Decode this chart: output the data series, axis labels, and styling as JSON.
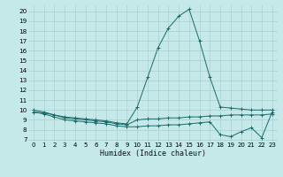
{
  "xlabel": "Humidex (Indice chaleur)",
  "ylabel": "",
  "background_color": "#c5e8e8",
  "grid_color": "#aacfcf",
  "line_color": "#1a6b6b",
  "x_ticks": [
    0,
    1,
    2,
    3,
    4,
    5,
    6,
    7,
    8,
    9,
    10,
    11,
    12,
    13,
    14,
    15,
    16,
    17,
    18,
    19,
    20,
    21,
    22,
    23
  ],
  "y_ticks": [
    7,
    8,
    9,
    10,
    11,
    12,
    13,
    14,
    15,
    16,
    17,
    18,
    19,
    20
  ],
  "ylim": [
    6.8,
    20.6
  ],
  "xlim": [
    -0.5,
    23.5
  ],
  "series": [
    {
      "x": [
        0,
        1,
        2,
        3,
        4,
        5,
        6,
        7,
        8,
        9,
        10,
        11,
        12,
        13,
        14,
        15,
        16,
        17,
        18,
        19,
        20,
        21,
        22,
        23
      ],
      "y": [
        10,
        9.8,
        9.5,
        9.3,
        9.2,
        9.1,
        9.0,
        8.9,
        8.7,
        8.6,
        10.3,
        13.3,
        16.3,
        18.3,
        19.5,
        20.2,
        17.0,
        13.3,
        10.3,
        10.2,
        10.1,
        10.0,
        10.0,
        10.0
      ]
    },
    {
      "x": [
        0,
        1,
        2,
        3,
        4,
        5,
        6,
        7,
        8,
        9,
        10,
        11,
        12,
        13,
        14,
        15,
        16,
        17,
        18,
        19,
        20,
        21,
        22,
        23
      ],
      "y": [
        9.8,
        9.6,
        9.3,
        9.0,
        8.9,
        8.8,
        8.7,
        8.6,
        8.4,
        8.3,
        8.3,
        8.4,
        8.4,
        8.5,
        8.5,
        8.6,
        8.7,
        8.8,
        7.5,
        7.3,
        7.8,
        8.2,
        7.2,
        9.8
      ]
    },
    {
      "x": [
        0,
        1,
        2,
        3,
        4,
        5,
        6,
        7,
        8,
        9,
        10,
        11,
        12,
        13,
        14,
        15,
        16,
        17,
        18,
        19,
        20,
        21,
        22,
        23
      ],
      "y": [
        9.8,
        9.7,
        9.5,
        9.2,
        9.1,
        9.0,
        8.9,
        8.8,
        8.6,
        8.5,
        9.0,
        9.1,
        9.1,
        9.2,
        9.2,
        9.3,
        9.3,
        9.4,
        9.4,
        9.5,
        9.5,
        9.5,
        9.5,
        9.6
      ]
    }
  ]
}
